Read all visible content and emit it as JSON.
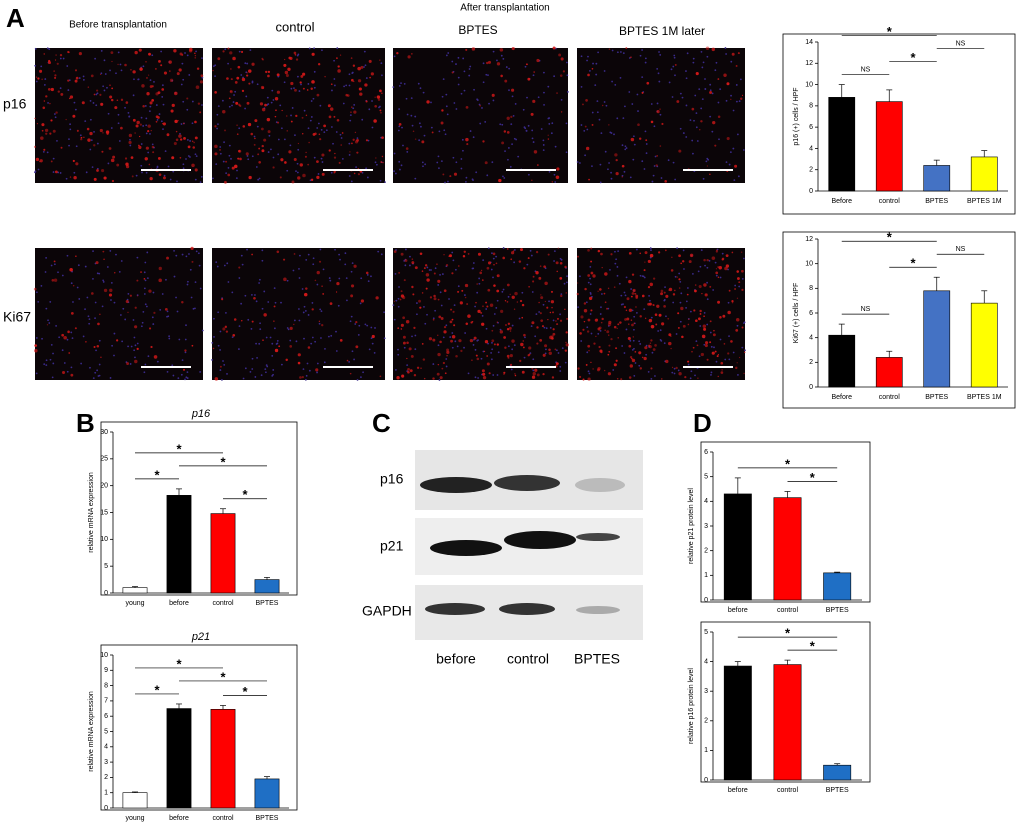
{
  "panels": {
    "a": "A",
    "b": "B",
    "c": "C",
    "d": "D"
  },
  "micrographs": {
    "header": "After transplantation",
    "columns": [
      "Before transplantation",
      "control",
      "BPTES",
      "BPTES 1M later"
    ],
    "rows": [
      "p16",
      "Ki67"
    ]
  },
  "blot": {
    "rows": [
      "p16",
      "p21",
      "GAPDH"
    ],
    "lanes": [
      "before",
      "control",
      "BPTES"
    ]
  },
  "chart_data": [
    {
      "type": "bar",
      "y_label": "p16 (+) cells / HPF",
      "categories": [
        "Before",
        "control",
        "BPTES",
        "BPTES 1M"
      ],
      "values": [
        8.8,
        8.4,
        2.4,
        3.2
      ],
      "errors": [
        1.2,
        1.1,
        0.5,
        0.6
      ],
      "colors": [
        "#000000",
        "#ff0000",
        "#4472c4",
        "#ffff00"
      ],
      "ylim": [
        0,
        14
      ],
      "yticks": [
        0,
        2,
        4,
        6,
        8,
        10,
        12,
        14
      ],
      "annotations": [
        {
          "text": "NS",
          "pair": [
            0,
            1
          ]
        },
        {
          "text": "*",
          "pair": [
            1,
            2
          ]
        },
        {
          "text": "NS",
          "pair": [
            2,
            3
          ]
        },
        {
          "text": "*",
          "pair": [
            0,
            2
          ]
        }
      ]
    },
    {
      "type": "bar",
      "y_label": "Ki67 (+) cells / HPF",
      "categories": [
        "Before",
        "control",
        "BPTES",
        "BPTES 1M"
      ],
      "values": [
        4.2,
        2.4,
        7.8,
        6.8
      ],
      "errors": [
        0.9,
        0.5,
        1.1,
        1.0
      ],
      "colors": [
        "#000000",
        "#ff0000",
        "#4472c4",
        "#ffff00"
      ],
      "ylim": [
        0,
        12
      ],
      "yticks": [
        0,
        2,
        4,
        6,
        8,
        10,
        12
      ],
      "annotations": [
        {
          "text": "NS",
          "pair": [
            0,
            1
          ]
        },
        {
          "text": "*",
          "pair": [
            1,
            2
          ]
        },
        {
          "text": "NS",
          "pair": [
            2,
            3
          ]
        },
        {
          "text": "*",
          "pair": [
            0,
            2
          ]
        }
      ]
    },
    {
      "type": "bar",
      "title": "p16",
      "y_label": "relative mRNA expression",
      "categories": [
        "young",
        "before",
        "control",
        "BPTES"
      ],
      "values": [
        1.0,
        18.2,
        14.8,
        2.5
      ],
      "errors": [
        0.2,
        1.2,
        0.9,
        0.4
      ],
      "colors": [
        "#ffffff",
        "#000000",
        "#ff0000",
        "#1f6fc5"
      ],
      "ylim": [
        0,
        30
      ],
      "yticks": [
        0,
        5,
        10,
        15,
        20,
        25,
        30
      ],
      "annotations": [
        {
          "text": "*",
          "pair": [
            0,
            1
          ]
        },
        {
          "text": "*",
          "pair": [
            2,
            3
          ]
        },
        {
          "text": "*",
          "pair": [
            1,
            3
          ]
        },
        {
          "text": "*",
          "pair": [
            0,
            2
          ]
        }
      ]
    },
    {
      "type": "bar",
      "title": "p21",
      "y_label": "relative  mRNA expression",
      "categories": [
        "young",
        "before",
        "control",
        "BPTES"
      ],
      "values": [
        1.0,
        6.5,
        6.45,
        1.9
      ],
      "errors": [
        0.05,
        0.3,
        0.25,
        0.15
      ],
      "colors": [
        "#ffffff",
        "#000000",
        "#ff0000",
        "#1f6fc5"
      ],
      "ylim": [
        0,
        10
      ],
      "yticks": [
        0,
        1,
        2,
        3,
        4,
        5,
        6,
        7,
        8,
        9,
        10
      ],
      "annotations": [
        {
          "text": "*",
          "pair": [
            0,
            1
          ]
        },
        {
          "text": "*",
          "pair": [
            2,
            3
          ]
        },
        {
          "text": "*",
          "pair": [
            1,
            3
          ]
        },
        {
          "text": "*",
          "pair": [
            0,
            2
          ]
        }
      ]
    },
    {
      "type": "bar",
      "y_label": "relative p21 protein level",
      "categories": [
        "before",
        "control",
        "BPTES"
      ],
      "values": [
        4.3,
        4.15,
        1.1
      ],
      "errors": [
        0.65,
        0.25,
        0.03
      ],
      "colors": [
        "#000000",
        "#ff0000",
        "#1f6fc5"
      ],
      "ylim": [
        0,
        6
      ],
      "yticks": [
        0,
        1,
        2,
        3,
        4,
        5,
        6
      ],
      "annotations": [
        {
          "text": "*",
          "pair": [
            1,
            2
          ]
        },
        {
          "text": "*",
          "pair": [
            0,
            2
          ]
        }
      ]
    },
    {
      "type": "bar",
      "y_label": "relative p16 protein level",
      "categories": [
        "before",
        "control",
        "BPTES"
      ],
      "values": [
        3.85,
        3.9,
        0.5
      ],
      "errors": [
        0.15,
        0.15,
        0.05
      ],
      "colors": [
        "#000000",
        "#ff0000",
        "#1f6fc5"
      ],
      "ylim": [
        0,
        5
      ],
      "yticks": [
        0,
        1,
        2,
        3,
        4,
        5
      ],
      "annotations": [
        {
          "text": "*",
          "pair": [
            1,
            2
          ]
        },
        {
          "text": "*",
          "pair": [
            0,
            2
          ]
        }
      ]
    }
  ]
}
